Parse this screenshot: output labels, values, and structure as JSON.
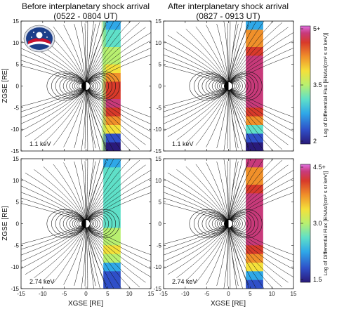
{
  "header": {
    "left_title": "Before interplanetary shock arrival",
    "left_time": "(0522 - 0804 UT)",
    "right_title": "After interplanetary shock arrival",
    "right_time": "(0827 - 0913 UT)"
  },
  "axes": {
    "xlabel": "XGSE [RE]",
    "ylabel": "ZGSE [RE]",
    "x_ticks": [
      "-15",
      "-10",
      "-5",
      "0",
      "5",
      "10",
      "15"
    ],
    "y_ticks": [
      "15",
      "10",
      "5",
      "0",
      "-5",
      "-10",
      "-15"
    ]
  },
  "panels": [
    {
      "id": "top-left",
      "energy": "1.1 keV"
    },
    {
      "id": "top-right",
      "energy": "1.1 keV"
    },
    {
      "id": "bottom-left",
      "energy": "2.74 keV"
    },
    {
      "id": "bottom-right",
      "energy": "2.74 keV"
    }
  ],
  "colorbars": [
    {
      "label": "Log of Differential Flux [ENAs/(cm² s sr keV)]",
      "ticks": [
        "5+",
        "3.5",
        "2"
      ],
      "range": [
        2,
        5
      ]
    },
    {
      "label": "Log of Differential Flux [ENAs/(cm² s sr keV)]",
      "ticks": [
        "4.5+",
        "3.0",
        "1.5"
      ],
      "range": [
        1.5,
        4.5
      ]
    }
  ],
  "colors": {
    "scale": [
      "#2a1a7a",
      "#2f4fc8",
      "#2fa8e8",
      "#5fe0c8",
      "#b8f070",
      "#f4e03a",
      "#f0902a",
      "#d83a2a",
      "#c83a7a",
      "#e070e0"
    ]
  }
}
